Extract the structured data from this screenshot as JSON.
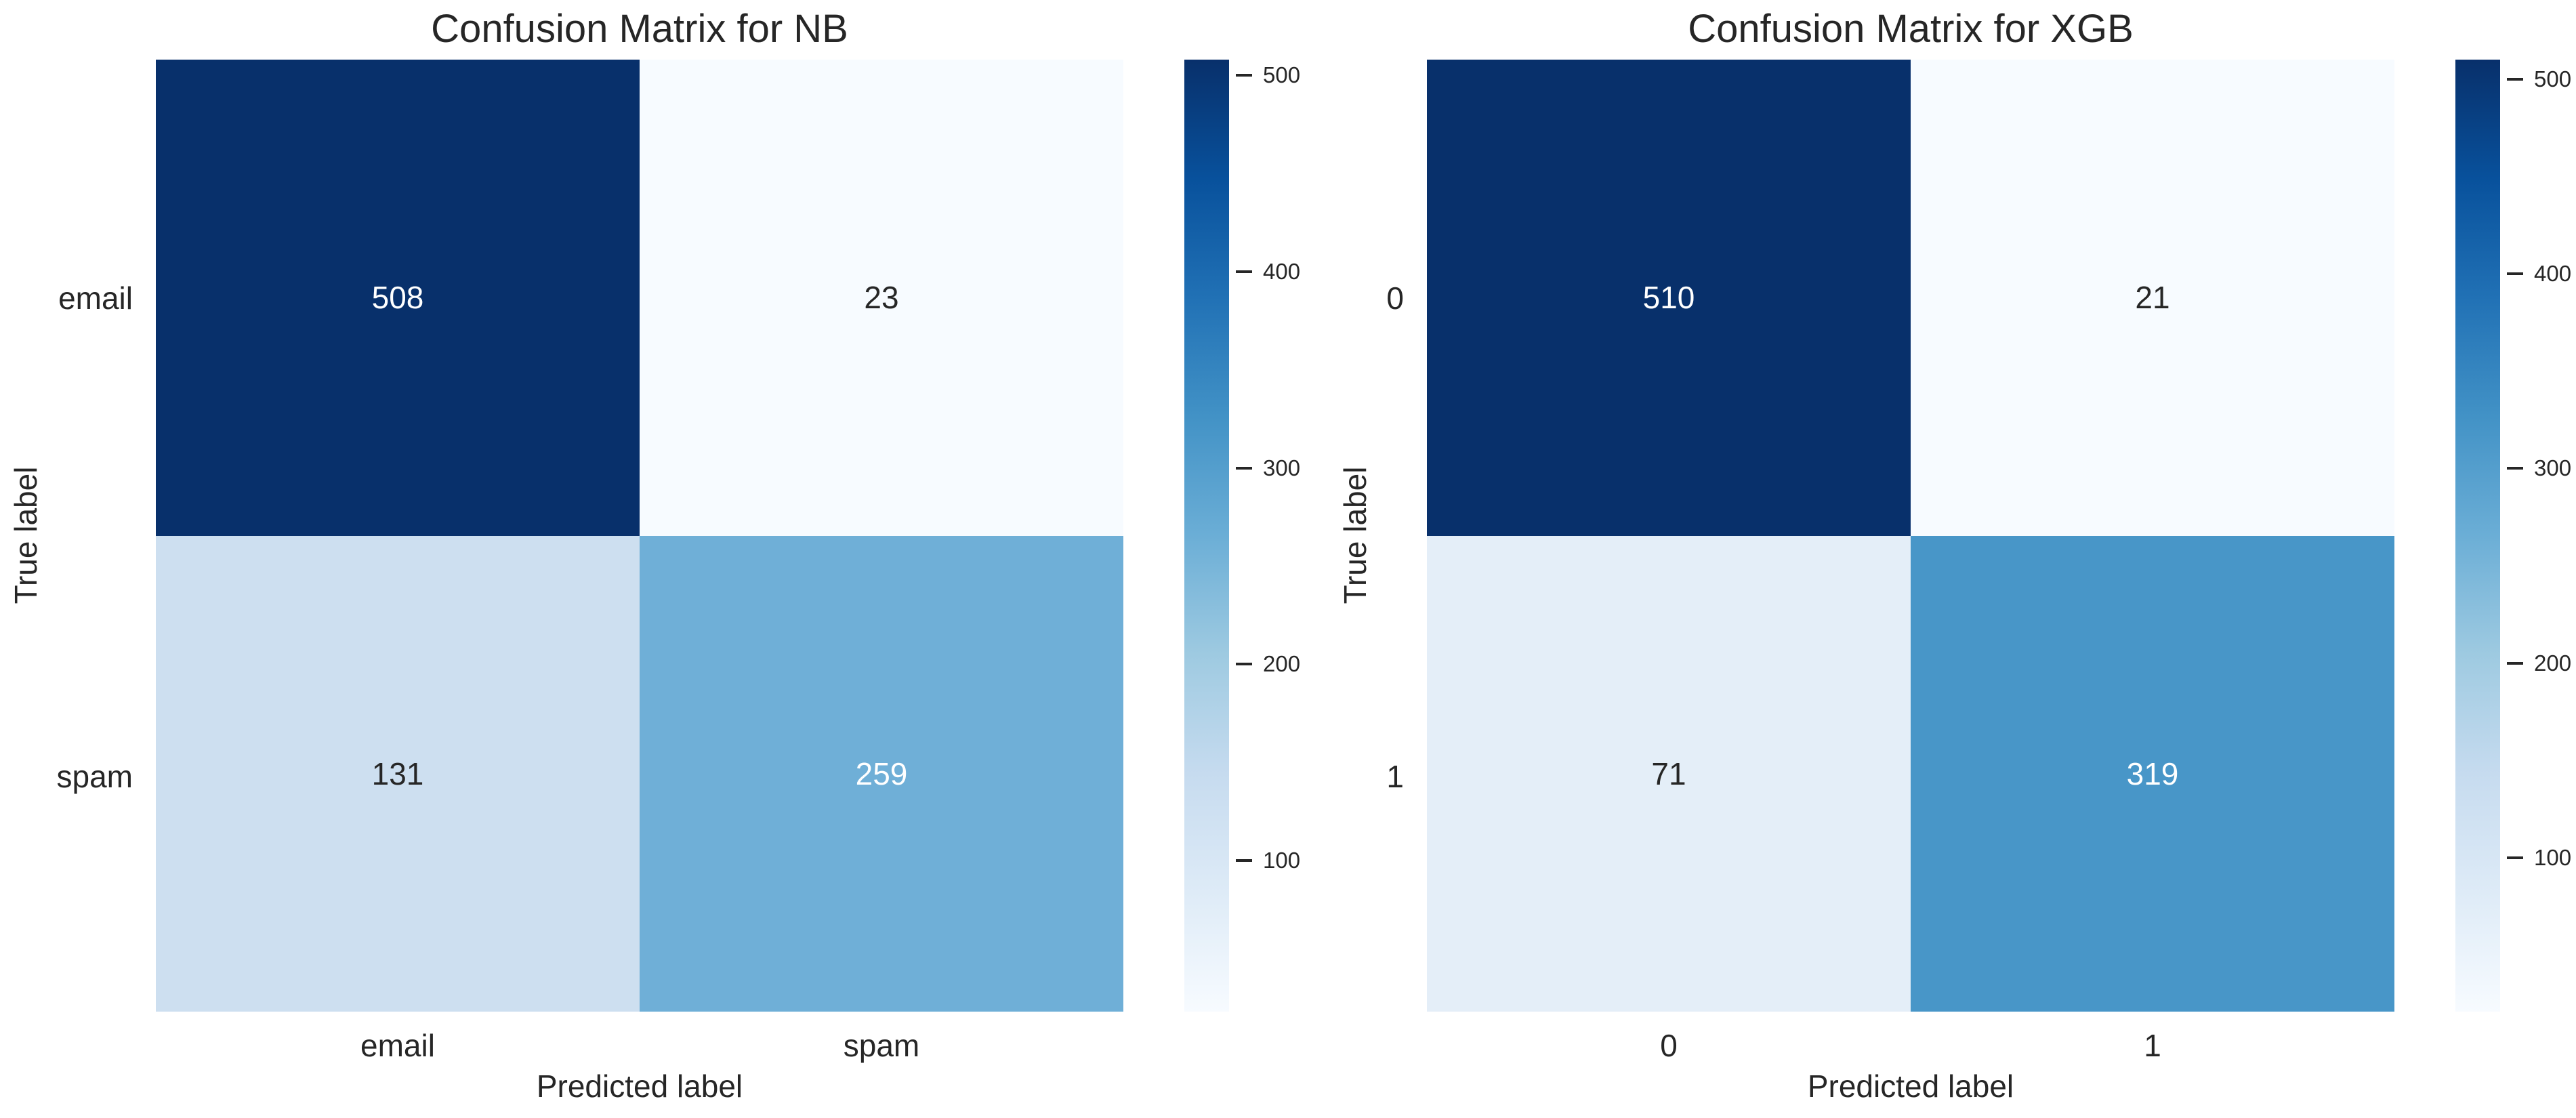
{
  "figure": {
    "background": "#ffffff",
    "text_color": "#262626",
    "colormap": "Blues",
    "colormap_top_hex": "#08306b",
    "colormap_bottom_hex": "#f7fbff"
  },
  "charts": [
    {
      "title": "Confusion Matrix for NB",
      "xlabel": "Predicted label",
      "ylabel": "True label",
      "yticks": [
        {
          "label": "email"
        },
        {
          "label": "spam"
        }
      ],
      "xticks": [
        {
          "label": "email"
        },
        {
          "label": "spam"
        }
      ],
      "cells": [
        {
          "value": "508",
          "bg": "#08306b",
          "fg": "#ffffff"
        },
        {
          "value": "23",
          "bg": "#f7fbff",
          "fg": "#262626"
        },
        {
          "value": "131",
          "bg": "#cddff0",
          "fg": "#262626"
        },
        {
          "value": "259",
          "bg": "#6fafd7",
          "fg": "#ffffff"
        }
      ],
      "colorbar": {
        "ticks": [
          {
            "label": "500",
            "top": "1.65%"
          },
          {
            "label": "400",
            "top": "22.27%"
          },
          {
            "label": "300",
            "top": "42.89%"
          },
          {
            "label": "200",
            "top": "63.51%"
          },
          {
            "label": "100",
            "top": "84.12%"
          }
        ]
      }
    },
    {
      "title": "Confusion Matrix for XGB",
      "xlabel": "Predicted label",
      "ylabel": "True label",
      "yticks": [
        {
          "label": "0"
        },
        {
          "label": "1"
        }
      ],
      "xticks": [
        {
          "label": "0"
        },
        {
          "label": "1"
        }
      ],
      "cells": [
        {
          "value": "510",
          "bg": "#08306b",
          "fg": "#ffffff"
        },
        {
          "value": "21",
          "bg": "#f7fbff",
          "fg": "#262626"
        },
        {
          "value": "71",
          "bg": "#e4eef8",
          "fg": "#262626"
        },
        {
          "value": "319",
          "bg": "#4896c8",
          "fg": "#ffffff"
        }
      ],
      "colorbar": {
        "ticks": [
          {
            "label": "500",
            "top": "2.04%"
          },
          {
            "label": "400",
            "top": "22.49%"
          },
          {
            "label": "300",
            "top": "42.94%"
          },
          {
            "label": "200",
            "top": "63.39%"
          },
          {
            "label": "100",
            "top": "83.84%"
          }
        ]
      }
    }
  ],
  "chart_data": [
    {
      "type": "heatmap",
      "title": "Confusion Matrix for NB",
      "xlabel": "Predicted label",
      "ylabel": "True label",
      "x_categories": [
        "email",
        "spam"
      ],
      "y_categories": [
        "email",
        "spam"
      ],
      "values": [
        [
          508,
          23
        ],
        [
          131,
          259
        ]
      ],
      "colormap": "Blues",
      "vmin": 23,
      "vmax": 508,
      "colorbar": {
        "position": "right",
        "tick_values": [
          100,
          200,
          300,
          400,
          500
        ]
      },
      "annotations_shown": true,
      "grid": false
    },
    {
      "type": "heatmap",
      "title": "Confusion Matrix for XGB",
      "xlabel": "Predicted label",
      "ylabel": "True label",
      "x_categories": [
        "0",
        "1"
      ],
      "y_categories": [
        "0",
        "1"
      ],
      "values": [
        [
          510,
          21
        ],
        [
          71,
          319
        ]
      ],
      "colormap": "Blues",
      "vmin": 21,
      "vmax": 510,
      "colorbar": {
        "position": "right",
        "tick_values": [
          100,
          200,
          300,
          400,
          500
        ]
      },
      "annotations_shown": true,
      "grid": false
    }
  ]
}
